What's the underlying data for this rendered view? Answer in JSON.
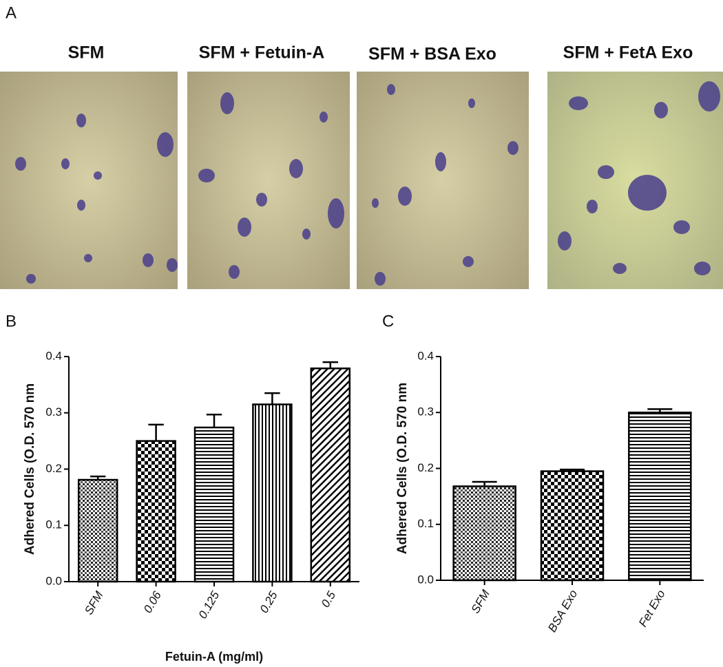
{
  "figure": {
    "panel_labels": [
      "A",
      "B",
      "C"
    ],
    "panel_a_titles": [
      "SFM",
      "SFM + Fetuin-A",
      "SFM + BSA Exo",
      "SFM + FetA  Exo"
    ]
  },
  "chart_data": [
    {
      "type": "bar",
      "ylabel": "Adhered Cells (O.D. 570 nm",
      "xlabel": "Fetuin-A (mg/ml)",
      "categories": [
        "SFM",
        "0.06",
        "0.125",
        "0.25",
        "0.5"
      ],
      "values": [
        0.181,
        0.25,
        0.274,
        0.315,
        0.379
      ],
      "errors": [
        0.006,
        0.029,
        0.023,
        0.02,
        0.011
      ],
      "ylim": [
        0,
        0.4
      ],
      "yticks": [
        {
          "value": 0,
          "label": "0.0"
        },
        0.1,
        0.2,
        0.3,
        0.4
      ]
    },
    {
      "type": "bar",
      "ylabel": "Adhered Cells (O.D. 570 nm",
      "categories": [
        "SFM",
        "BSA Exo",
        "Fet Exo"
      ],
      "values": [
        0.168,
        0.195,
        0.3
      ],
      "errors": [
        0.008,
        0.003,
        0.006
      ],
      "ylim": [
        0,
        0.4
      ],
      "yticks": [
        {
          "value": 0,
          "label": "0.0"
        },
        0.1,
        0.2,
        0.3,
        0.4
      ]
    }
  ]
}
